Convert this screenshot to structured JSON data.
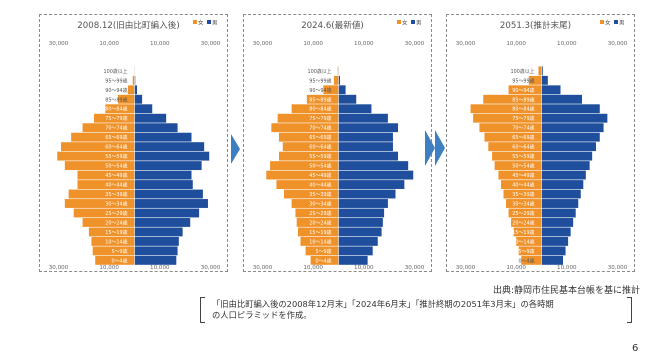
{
  "chart_data": [
    {
      "type": "bar",
      "title": "2008.12(旧由比町編入後)",
      "legend": [
        "女",
        "男"
      ],
      "legend_placement": "top-right",
      "x_tick_labels": [
        "30,000",
        "10,000",
        "10,000",
        "30,000"
      ],
      "age_labels": [
        "0〜4歳",
        "5〜9歳",
        "10〜14歳",
        "15〜19歳",
        "20〜24歳",
        "25〜29歳",
        "30〜34歳",
        "35〜39歳",
        "40〜44歳",
        "45〜49歳",
        "50〜54歳",
        "55〜59歳",
        "60〜64歳",
        "65〜69歳",
        "70〜74歳",
        "75〜79歳",
        "80〜84歳",
        "85〜89歳",
        "90〜94歳",
        "95〜99歳",
        "100歳以上"
      ],
      "categories": [
        "0-4",
        "5-9",
        "10-14",
        "15-19",
        "20-24",
        "25-29",
        "30-34",
        "35-39",
        "40-44",
        "45-49",
        "50-54",
        "55-59",
        "60-64",
        "65-69",
        "70-74",
        "75-79",
        "80-84",
        "85-89",
        "90-94",
        "95-99",
        "100+"
      ],
      "series": [
        {
          "name": "女",
          "values": [
            15500,
            16500,
            17000,
            18000,
            20500,
            24000,
            27500,
            26000,
            22500,
            22500,
            27500,
            30500,
            29000,
            25000,
            20500,
            16000,
            11500,
            6500,
            2600,
            700,
            100
          ]
        },
        {
          "name": "男",
          "values": [
            16500,
            17000,
            17500,
            19000,
            22000,
            25500,
            29000,
            27000,
            23000,
            22500,
            26500,
            29500,
            27500,
            22500,
            17000,
            12500,
            7000,
            3000,
            1000,
            300,
            50
          ]
        }
      ],
      "xlim": [
        -30000,
        30000
      ]
    },
    {
      "type": "bar",
      "title": "2024.6(最新値)",
      "legend": [
        "女",
        "男"
      ],
      "legend_placement": "top-right",
      "x_tick_labels": [
        "30,000",
        "10,000",
        "10,000",
        "30,000"
      ],
      "age_labels": [
        "0〜4歳",
        "5〜9歳",
        "10〜14歳",
        "15〜19歳",
        "20〜24歳",
        "25〜29歳",
        "30〜34歳",
        "35〜39歳",
        "40〜44歳",
        "45〜49歳",
        "50〜54歳",
        "55〜59歳",
        "60〜64歳",
        "65〜69歳",
        "70〜74歳",
        "75〜79歳",
        "80〜84歳",
        "85〜89歳",
        "90〜94歳",
        "95〜99歳",
        "100歳以上"
      ],
      "categories": [
        "0-4",
        "5-9",
        "10-14",
        "15-19",
        "20-24",
        "25-29",
        "30-34",
        "35-39",
        "40-44",
        "45-49",
        "50-54",
        "55-59",
        "60-64",
        "65-69",
        "70-74",
        "75-79",
        "80-84",
        "85-89",
        "90-94",
        "95-99",
        "100+"
      ],
      "series": [
        {
          "name": "女",
          "values": [
            11000,
            13000,
            15000,
            16000,
            16500,
            17000,
            18500,
            21500,
            24500,
            28500,
            27000,
            23500,
            22000,
            23500,
            26500,
            24000,
            18500,
            12500,
            6000,
            1800,
            300
          ]
        },
        {
          "name": "男",
          "values": [
            11500,
            13500,
            15500,
            17000,
            17500,
            18000,
            19500,
            22500,
            26000,
            29500,
            27500,
            23500,
            21500,
            21500,
            23500,
            19500,
            13000,
            7000,
            2800,
            600,
            100
          ]
        }
      ],
      "xlim": [
        -30000,
        30000
      ]
    },
    {
      "type": "bar",
      "title": "2051.3(推計末尾)",
      "legend": [
        "女",
        "男"
      ],
      "legend_placement": "top-right",
      "x_tick_labels": [
        "30,000",
        "10,000",
        "10,000",
        "30,000"
      ],
      "age_labels": [
        "0〜4歳",
        "5〜9歳",
        "10〜14歳",
        "15〜19歳",
        "20〜24歳",
        "25〜29歳",
        "30〜34歳",
        "35〜39歳",
        "40〜44歳",
        "45〜49歳",
        "50〜54歳",
        "55〜59歳",
        "60〜64歳",
        "65〜69歳",
        "70〜74歳",
        "75〜79歳",
        "80〜84歳",
        "85〜89歳",
        "90〜94歳",
        "95〜99歳",
        "100歳以上"
      ],
      "categories": [
        "0-4",
        "5-9",
        "10-14",
        "15-19",
        "20-24",
        "25-29",
        "30-34",
        "35-39",
        "40-44",
        "45-49",
        "50-54",
        "55-59",
        "60-64",
        "65-69",
        "70-74",
        "75-79",
        "80-84",
        "85-89",
        "90-94",
        "95-99",
        "100+"
      ],
      "series": [
        {
          "name": "女",
          "values": [
            8000,
            9000,
            10000,
            11000,
            12000,
            13000,
            14000,
            15000,
            16000,
            17000,
            18500,
            19500,
            21000,
            22500,
            24500,
            27000,
            28000,
            23000,
            13000,
            5000,
            1200
          ]
        },
        {
          "name": "男",
          "values": [
            8500,
            9500,
            10500,
            11500,
            12500,
            13500,
            14500,
            15500,
            16500,
            17500,
            19000,
            20000,
            21500,
            23000,
            24500,
            26000,
            23000,
            16000,
            7500,
            2500,
            500
          ]
        }
      ],
      "xlim": [
        -30000,
        30000
      ]
    }
  ],
  "source_text": "出典:静岡市住民基本台帳を基に推計",
  "note": {
    "line1": "「旧由比町編入後の2008年12月末」「2024年6月末」「推計終期の2051年3月末」の各時期",
    "line2": "の人口ピラミッドを作成。"
  },
  "page_number": "6",
  "colors": {
    "female": "#f0922a",
    "male": "#1f4e9c",
    "arrow": "#3e7fc1",
    "frame": "#8a8a8a"
  }
}
